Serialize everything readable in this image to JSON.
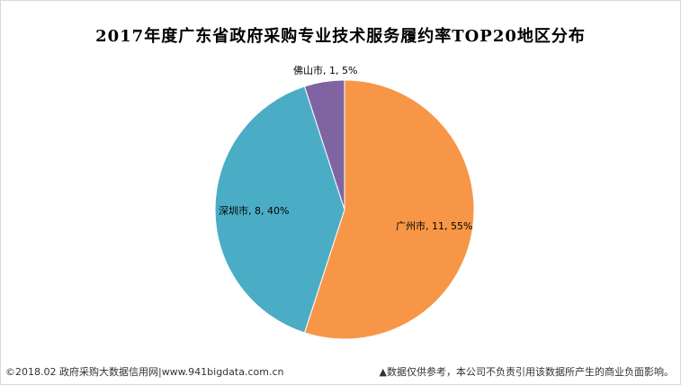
{
  "chart_data": {
    "type": "pie",
    "title": "2017年度广东省政府采购专业技术服务履约率TOP20地区分布",
    "slices": [
      {
        "name": "广州市",
        "value": 11,
        "percent": "55%",
        "color": "#F79646"
      },
      {
        "name": "深圳市",
        "value": 8,
        "percent": "40%",
        "color": "#4BACC6"
      },
      {
        "name": "佛山市",
        "value": 1,
        "percent": "5%",
        "color": "#8064A2"
      }
    ],
    "start_angle_deg": 0,
    "direction": "clockwise",
    "legend": "none"
  },
  "footer": {
    "left": "©2018.02 政府采购大数据信用网|www.941bigdata.com.cn",
    "right": "▲数据仅供参考，本公司不负责引用该数据所产生的商业负面影响。"
  }
}
